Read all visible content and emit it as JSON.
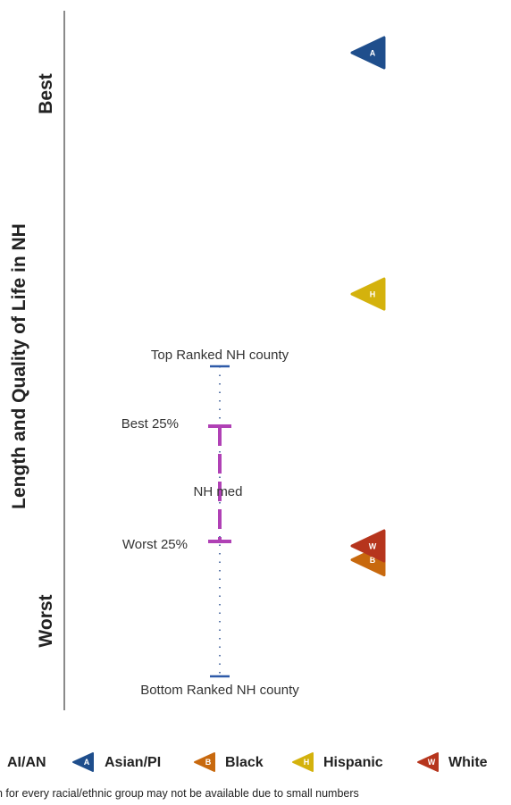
{
  "chart_data": {
    "type": "scatter",
    "ylabel": "Length and Quality of Life in NH",
    "y_end_labels": {
      "top": "Best",
      "bottom": "Worst"
    },
    "annotations": {
      "top_county": "Top Ranked NH county",
      "best_25": "Best 25%",
      "median": "NH med",
      "worst_25": "Worst 25%",
      "bottom_county": "Bottom Ranked NH county"
    },
    "series": [
      {
        "name": "AI/AN",
        "letter": "",
        "color": "#000000",
        "value": null
      },
      {
        "name": "Asian/PI",
        "letter": "A",
        "color": "#1f4e8c",
        "value": 0.94
      },
      {
        "name": "Black",
        "letter": "B",
        "color": "#c8690e",
        "value": 0.215
      },
      {
        "name": "Hispanic",
        "letter": "H",
        "color": "#d4b20d",
        "value": 0.595
      },
      {
        "name": "White",
        "letter": "W",
        "color": "#b6351d",
        "value": 0.235
      }
    ],
    "footnote": "n for every racial/ethnic group may not be available due to small numbers"
  }
}
